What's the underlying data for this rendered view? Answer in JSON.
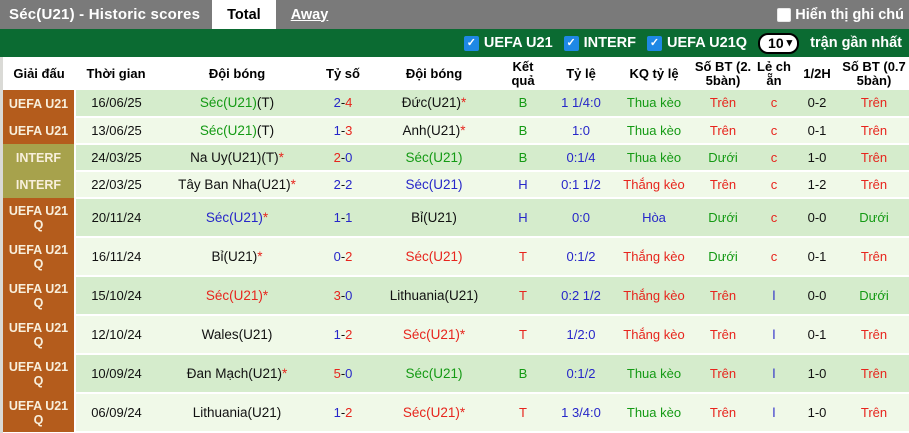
{
  "title_bar": {
    "title": "Séc(U21) - Historic scores",
    "tabs": [
      {
        "label": "Total",
        "active": true
      },
      {
        "label": "Away",
        "active": false
      }
    ],
    "note_label": "Hiển thị ghi chú"
  },
  "filter_bar": {
    "competitions": [
      "UEFA U21",
      "INTERF",
      "UEFA U21Q"
    ],
    "count": "10",
    "count_suffix": "trận gần nhất"
  },
  "table": {
    "headers": [
      "Giải đấu",
      "Thời gian",
      "Đội bóng",
      "Tỷ số",
      "Đội bóng",
      "Kết quả",
      "Tỷ lệ",
      "KQ tỷ lệ",
      "Số BT (2.5bàn)",
      "Lẻ chẵn",
      "1/2H",
      "Số BT (0.75bàn)"
    ],
    "rows": [
      {
        "league": "UEFA U21",
        "league_type": "uefa",
        "date": "16/06/25",
        "home": {
          "name": "Séc(U21)",
          "suffix": "(T)",
          "star": false,
          "color": "green"
        },
        "score": {
          "home": "2",
          "away": "4",
          "home_color": "blue",
          "away_color": "red"
        },
        "away": {
          "name": "Đức(U21)",
          "suffix": "",
          "star": true,
          "color": "black"
        },
        "result": "B",
        "result_color": "green",
        "odds": "1 1/4:0",
        "odds_result": "Thua kèo",
        "odds_result_color": "green",
        "ou25": "Trên",
        "ou25_color": "red",
        "odd_even": "c",
        "odd_even_color": "red",
        "half": "0-2",
        "ou075": "Trên",
        "ou075_color": "red"
      },
      {
        "league": "UEFA U21",
        "league_type": "uefa",
        "date": "13/06/25",
        "home": {
          "name": "Séc(U21)",
          "suffix": "(T)",
          "star": false,
          "color": "green"
        },
        "score": {
          "home": "1",
          "away": "3",
          "home_color": "blue",
          "away_color": "red"
        },
        "away": {
          "name": "Anh(U21)",
          "suffix": "",
          "star": true,
          "color": "black"
        },
        "result": "B",
        "result_color": "green",
        "odds": "1:0",
        "odds_result": "Thua kèo",
        "odds_result_color": "green",
        "ou25": "Trên",
        "ou25_color": "red",
        "odd_even": "c",
        "odd_even_color": "red",
        "half": "0-1",
        "ou075": "Trên",
        "ou075_color": "red"
      },
      {
        "league": "INTERF",
        "league_type": "interf",
        "date": "24/03/25",
        "home": {
          "name": "Na Uy(U21)",
          "suffix": "(T)",
          "star": true,
          "color": "black"
        },
        "score": {
          "home": "2",
          "away": "0",
          "home_color": "red",
          "away_color": "blue"
        },
        "away": {
          "name": "Séc(U21)",
          "suffix": "",
          "star": false,
          "color": "green"
        },
        "result": "B",
        "result_color": "green",
        "odds": "0:1/4",
        "odds_result": "Thua kèo",
        "odds_result_color": "green",
        "ou25": "Dưới",
        "ou25_color": "green",
        "odd_even": "c",
        "odd_even_color": "red",
        "half": "1-0",
        "ou075": "Trên",
        "ou075_color": "red"
      },
      {
        "league": "INTERF",
        "league_type": "interf",
        "date": "22/03/25",
        "home": {
          "name": "Tây Ban Nha(U21)",
          "suffix": "",
          "star": true,
          "color": "black"
        },
        "score": {
          "home": "2",
          "away": "2",
          "home_color": "blue",
          "away_color": "blue"
        },
        "away": {
          "name": "Séc(U21)",
          "suffix": "",
          "star": false,
          "color": "blue"
        },
        "result": "H",
        "result_color": "blue",
        "odds": "0:1 1/2",
        "odds_result": "Thắng kèo",
        "odds_result_color": "red",
        "ou25": "Trên",
        "ou25_color": "red",
        "odd_even": "c",
        "odd_even_color": "red",
        "half": "1-2",
        "ou075": "Trên",
        "ou075_color": "red"
      },
      {
        "league": "UEFA U21 Q",
        "league_type": "uefa",
        "date": "20/11/24",
        "home": {
          "name": "Séc(U21)",
          "suffix": "",
          "star": true,
          "color": "blue"
        },
        "score": {
          "home": "1",
          "away": "1",
          "home_color": "blue",
          "away_color": "blue"
        },
        "away": {
          "name": "Bỉ(U21)",
          "suffix": "",
          "star": false,
          "color": "black"
        },
        "result": "H",
        "result_color": "blue",
        "odds": "0:0",
        "odds_result": "Hòa",
        "odds_result_color": "blue",
        "ou25": "Dưới",
        "ou25_color": "green",
        "odd_even": "c",
        "odd_even_color": "red",
        "half": "0-0",
        "ou075": "Dưới",
        "ou075_color": "green"
      },
      {
        "league": "UEFA U21 Q",
        "league_type": "uefa",
        "date": "16/11/24",
        "home": {
          "name": "Bỉ(U21)",
          "suffix": "",
          "star": true,
          "color": "black"
        },
        "score": {
          "home": "0",
          "away": "2",
          "home_color": "blue",
          "away_color": "red"
        },
        "away": {
          "name": "Séc(U21)",
          "suffix": "",
          "star": false,
          "color": "red"
        },
        "result": "T",
        "result_color": "red",
        "odds": "0:1/2",
        "odds_result": "Thắng kèo",
        "odds_result_color": "red",
        "ou25": "Dưới",
        "ou25_color": "green",
        "odd_even": "c",
        "odd_even_color": "red",
        "half": "0-1",
        "ou075": "Trên",
        "ou075_color": "red"
      },
      {
        "league": "UEFA U21 Q",
        "league_type": "uefa",
        "date": "15/10/24",
        "home": {
          "name": "Séc(U21)",
          "suffix": "",
          "star": true,
          "color": "red"
        },
        "score": {
          "home": "3",
          "away": "0",
          "home_color": "red",
          "away_color": "blue"
        },
        "away": {
          "name": "Lithuania(U21)",
          "suffix": "",
          "star": false,
          "color": "black"
        },
        "result": "T",
        "result_color": "red",
        "odds": "0:2 1/2",
        "odds_result": "Thắng kèo",
        "odds_result_color": "red",
        "ou25": "Trên",
        "ou25_color": "red",
        "odd_even": "l",
        "odd_even_color": "blue",
        "half": "0-0",
        "ou075": "Dưới",
        "ou075_color": "green"
      },
      {
        "league": "UEFA U21 Q",
        "league_type": "uefa",
        "date": "12/10/24",
        "home": {
          "name": "Wales(U21)",
          "suffix": "",
          "star": false,
          "color": "black"
        },
        "score": {
          "home": "1",
          "away": "2",
          "home_color": "blue",
          "away_color": "red"
        },
        "away": {
          "name": "Séc(U21)",
          "suffix": "",
          "star": true,
          "color": "red"
        },
        "result": "T",
        "result_color": "red",
        "odds": "1/2:0",
        "odds_result": "Thắng kèo",
        "odds_result_color": "red",
        "ou25": "Trên",
        "ou25_color": "red",
        "odd_even": "l",
        "odd_even_color": "blue",
        "half": "0-1",
        "ou075": "Trên",
        "ou075_color": "red"
      },
      {
        "league": "UEFA U21 Q",
        "league_type": "uefa",
        "date": "10/09/24",
        "home": {
          "name": "Đan Mạch(U21)",
          "suffix": "",
          "star": true,
          "color": "black"
        },
        "score": {
          "home": "5",
          "away": "0",
          "home_color": "red",
          "away_color": "blue"
        },
        "away": {
          "name": "Séc(U21)",
          "suffix": "",
          "star": false,
          "color": "green"
        },
        "result": "B",
        "result_color": "green",
        "odds": "0:1/2",
        "odds_result": "Thua kèo",
        "odds_result_color": "green",
        "ou25": "Trên",
        "ou25_color": "red",
        "odd_even": "l",
        "odd_even_color": "blue",
        "half": "1-0",
        "ou075": "Trên",
        "ou075_color": "red"
      },
      {
        "league": "UEFA U21 Q",
        "league_type": "uefa",
        "date": "06/09/24",
        "home": {
          "name": "Lithuania(U21)",
          "suffix": "",
          "star": false,
          "color": "black"
        },
        "score": {
          "home": "1",
          "away": "2",
          "home_color": "blue",
          "away_color": "red"
        },
        "away": {
          "name": "Séc(U21)",
          "suffix": "",
          "star": true,
          "color": "red"
        },
        "result": "T",
        "result_color": "red",
        "odds": "1 3/4:0",
        "odds_result": "Thua kèo",
        "odds_result_color": "green",
        "ou25": "Trên",
        "ou25_color": "red",
        "odd_even": "l",
        "odd_even_color": "blue",
        "half": "1-0",
        "ou075": "Trên",
        "ou075_color": "red"
      }
    ]
  },
  "icons": {
    "checked": "✓",
    "chevron_down": "▾"
  },
  "colors": {
    "top_bar": "#7a7a7a",
    "filter_bar": "#0b6b32",
    "league_uefa": "#b45c1c",
    "league_interf": "#a7a24c",
    "row_dark": "#d5eccc",
    "row_light": "#f0f9e8",
    "checkbox_blue": "#1e88e5",
    "text_red": "#e7251d",
    "text_blue": "#2626c9",
    "text_green": "#149a14"
  }
}
